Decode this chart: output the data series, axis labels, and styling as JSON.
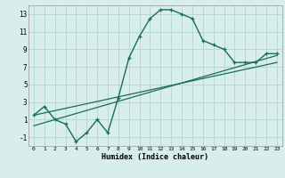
{
  "xlabel": "Humidex (Indice chaleur)",
  "bg_color": "#d7eeeb",
  "grid_color": "#b8d8d4",
  "line_color": "#1a6b5e",
  "xlim": [
    -0.5,
    23.5
  ],
  "ylim": [
    -2.0,
    14.0
  ],
  "xticks": [
    0,
    1,
    2,
    3,
    4,
    5,
    6,
    7,
    8,
    9,
    10,
    11,
    12,
    13,
    14,
    15,
    16,
    17,
    18,
    19,
    20,
    21,
    22,
    23
  ],
  "yticks": [
    -1,
    1,
    3,
    5,
    7,
    9,
    11,
    13
  ],
  "curve1_x": [
    0,
    1,
    2,
    3,
    4,
    5,
    6,
    7,
    8,
    9,
    10,
    11,
    12,
    13,
    14,
    15,
    16,
    17,
    18,
    19,
    20,
    21,
    22,
    23
  ],
  "curve1_y": [
    1.5,
    2.5,
    1.0,
    0.5,
    -1.5,
    -0.5,
    1.0,
    -0.5,
    3.5,
    8.0,
    10.5,
    12.5,
    13.5,
    13.5,
    13.0,
    12.5,
    10.0,
    9.5,
    9.0,
    7.5,
    7.5,
    7.5,
    8.5,
    8.5
  ],
  "line1_x": [
    0,
    23
  ],
  "line1_y": [
    1.5,
    7.5
  ],
  "line2_x": [
    0,
    23
  ],
  "line2_y": [
    0.3,
    8.3
  ]
}
